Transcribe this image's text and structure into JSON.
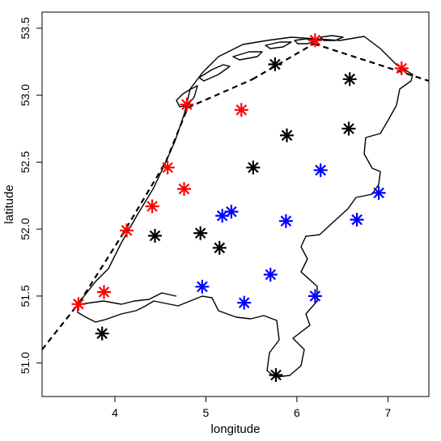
{
  "chart_data": {
    "type": "scatter",
    "title": "",
    "xlabel": "longitude",
    "ylabel": "latitude",
    "xlim": [
      3.2,
      7.45
    ],
    "ylim": [
      50.75,
      53.62
    ],
    "x_ticks": [
      4,
      5,
      6,
      7
    ],
    "y_ticks": [
      51.0,
      51.5,
      52.0,
      52.5,
      53.0,
      53.5
    ],
    "x_tick_labels": [
      "4",
      "5",
      "6",
      "7"
    ],
    "y_tick_labels": [
      "51.0",
      "51.5",
      "52.0",
      "52.5",
      "53.0",
      "53.5"
    ],
    "grid": false,
    "legend": "none",
    "marker": "asterisk",
    "series": [
      {
        "color": "#ff0000",
        "points": [
          [
            3.6,
            51.44
          ],
          [
            3.88,
            51.53
          ],
          [
            4.13,
            51.99
          ],
          [
            4.41,
            52.17
          ],
          [
            4.58,
            52.46
          ],
          [
            4.76,
            52.3
          ],
          [
            4.79,
            52.93
          ],
          [
            5.39,
            52.89
          ],
          [
            6.2,
            53.41
          ],
          [
            7.15,
            53.2
          ]
        ]
      },
      {
        "color": "#000000",
        "points": [
          [
            3.86,
            51.22
          ],
          [
            4.44,
            51.95
          ],
          [
            4.94,
            51.97
          ],
          [
            5.15,
            51.86
          ],
          [
            5.52,
            52.46
          ],
          [
            5.76,
            53.23
          ],
          [
            5.89,
            52.7
          ],
          [
            6.58,
            53.12
          ],
          [
            6.57,
            52.75
          ],
          [
            5.77,
            50.91
          ]
        ]
      },
      {
        "color": "#0000ff",
        "points": [
          [
            4.96,
            51.57
          ],
          [
            5.18,
            52.1
          ],
          [
            5.28,
            52.13
          ],
          [
            5.42,
            51.45
          ],
          [
            5.71,
            51.66
          ],
          [
            5.88,
            52.06
          ],
          [
            6.26,
            52.44
          ],
          [
            6.2,
            51.5
          ],
          [
            6.66,
            52.07
          ],
          [
            6.9,
            52.27
          ]
        ]
      }
    ]
  }
}
